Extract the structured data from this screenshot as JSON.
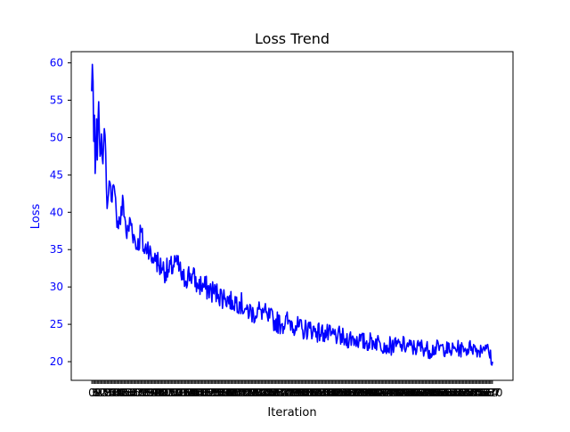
{
  "chart_data": {
    "type": "line",
    "title": "Loss Trend",
    "xlabel": "Iteration",
    "ylabel": "Loss",
    "ylim": [
      17.5,
      61.5
    ],
    "xlim": [
      -29,
      599
    ],
    "x_range": [
      0,
      570
    ],
    "y_ticks": [
      20,
      25,
      30,
      35,
      40,
      45,
      50,
      55,
      60
    ],
    "grid": false,
    "colors": {
      "line": "#0000ff",
      "ytick_label": "#0000ff",
      "ylabel": "#0000ff",
      "axes": "#000000"
    },
    "series": [
      {
        "x": [
          0,
          1,
          2,
          3,
          4,
          5,
          6,
          7,
          8,
          10,
          12,
          14,
          16,
          18,
          20,
          22,
          24,
          26,
          28,
          30,
          35,
          40,
          45,
          50,
          55,
          60,
          65,
          70,
          75,
          80,
          85,
          90,
          95,
          100,
          110,
          120,
          130,
          140,
          150,
          160,
          170,
          180,
          190,
          200,
          210,
          220,
          230,
          240,
          250,
          260,
          270,
          280,
          290,
          300,
          310,
          320,
          330,
          340,
          350,
          360,
          370,
          380,
          390,
          400,
          410,
          420,
          430,
          440,
          450,
          460,
          470,
          480,
          490,
          500,
          510,
          520,
          530,
          540,
          550,
          560,
          570
        ],
        "values": [
          56.2,
          59.8,
          57.5,
          49.5,
          53.0,
          45.2,
          48.0,
          52.5,
          47.0,
          54.8,
          47.5,
          50.5,
          46.5,
          51.2,
          48.0,
          40.5,
          42.5,
          44.0,
          41.5,
          43.5,
          40.0,
          38.5,
          41.5,
          36.5,
          39.0,
          37.0,
          35.0,
          37.5,
          34.5,
          36.0,
          33.5,
          34.5,
          33.0,
          32.5,
          32.0,
          33.5,
          31.0,
          31.8,
          30.5,
          30.0,
          29.5,
          29.0,
          28.5,
          28.2,
          28.0,
          27.0,
          26.5,
          27.0,
          26.0,
          25.5,
          25.0,
          25.5,
          24.8,
          24.2,
          24.5,
          24.0,
          23.8,
          23.5,
          23.5,
          23.0,
          23.2,
          22.8,
          22.5,
          22.8,
          22.5,
          22.2,
          22.0,
          22.3,
          22.0,
          21.8,
          22.0,
          21.5,
          21.8,
          21.8,
          21.5,
          21.8,
          21.5,
          22.0,
          21.5,
          22.2,
          20.0
        ]
      }
    ]
  }
}
